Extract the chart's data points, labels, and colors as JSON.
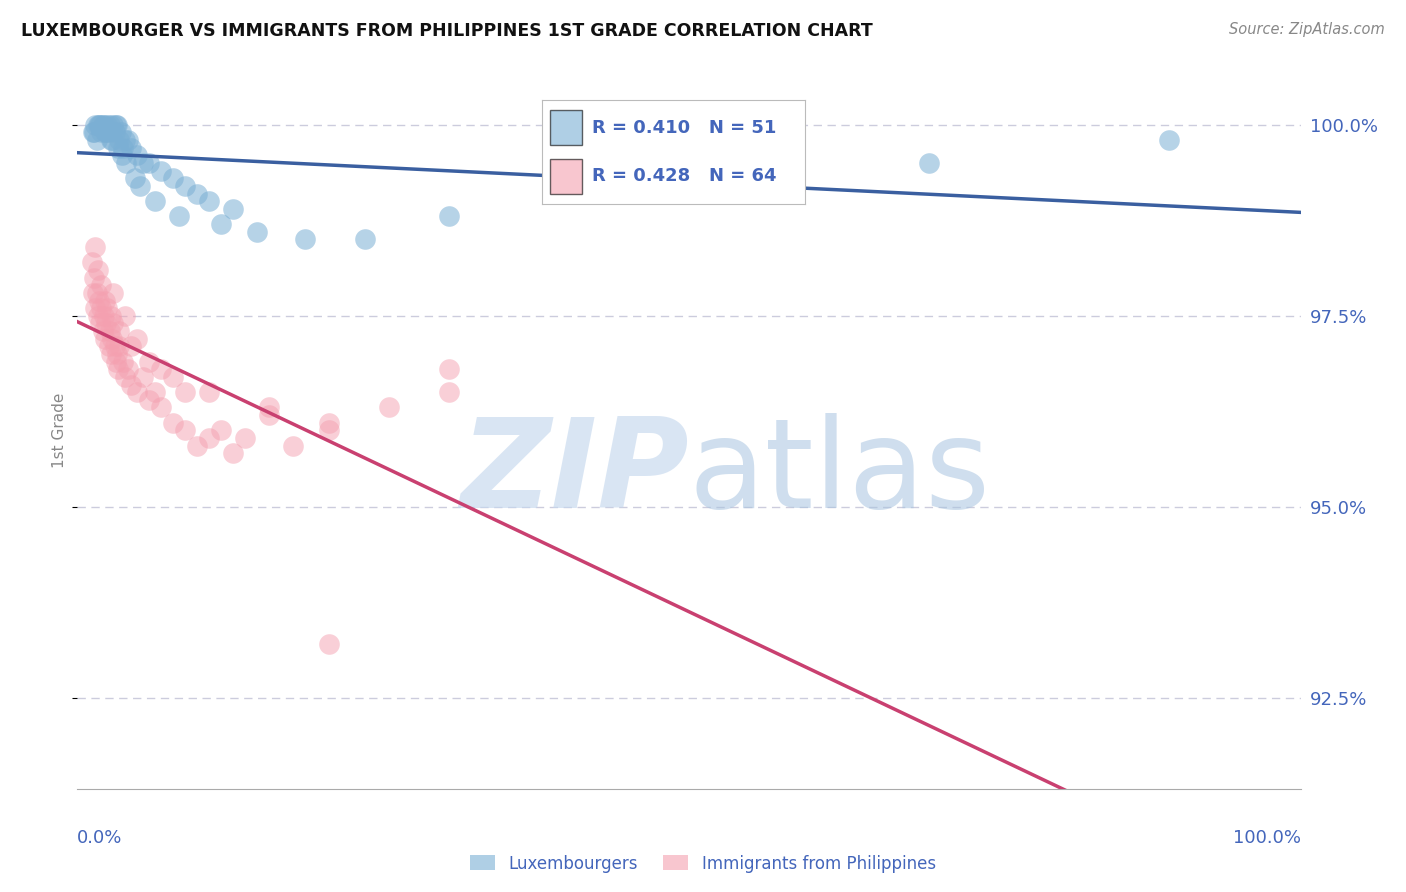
{
  "title": "LUXEMBOURGER VS IMMIGRANTS FROM PHILIPPINES 1ST GRADE CORRELATION CHART",
  "source": "Source: ZipAtlas.com",
  "ylabel": "1st Grade",
  "yticks": [
    92.5,
    95.0,
    97.5,
    100.0
  ],
  "ytick_labels": [
    "92.5%",
    "95.0%",
    "97.5%",
    "100.0%"
  ],
  "ymin": 91.3,
  "ymax": 100.7,
  "xmin": -1,
  "xmax": 101,
  "legend_blue_r": "0.410",
  "legend_blue_n": "51",
  "legend_pink_r": "0.428",
  "legend_pink_n": "64",
  "blue_color": "#7BAFD4",
  "pink_color": "#F4A0B0",
  "blue_line_color": "#3A5FA0",
  "pink_line_color": "#C94070",
  "axis_label_color": "#4466BB",
  "grid_color": "#CCCCDD",
  "title_color": "#111111",
  "source_color": "#888888",
  "ylabel_color": "#888888",
  "blue_scatter_x": [
    0.3,
    0.5,
    0.6,
    0.8,
    1.0,
    1.1,
    1.2,
    1.3,
    1.5,
    1.6,
    1.7,
    1.8,
    2.0,
    2.1,
    2.2,
    2.3,
    2.5,
    2.6,
    2.8,
    3.0,
    3.2,
    3.5,
    4.0,
    4.5,
    5.0,
    6.0,
    7.0,
    8.0,
    9.0,
    10.0,
    12.0,
    0.4,
    0.7,
    0.9,
    1.4,
    1.9,
    2.4,
    2.7,
    3.1,
    3.8,
    4.2,
    5.5,
    7.5,
    11.0,
    14.0,
    18.0,
    23.0,
    30.0,
    50.0,
    70.0,
    90.0
  ],
  "blue_scatter_y": [
    99.9,
    100.0,
    99.8,
    100.0,
    99.9,
    100.0,
    100.0,
    99.9,
    100.0,
    99.9,
    100.0,
    99.8,
    100.0,
    99.9,
    100.0,
    100.0,
    99.8,
    99.9,
    99.7,
    99.8,
    99.8,
    99.7,
    99.6,
    99.5,
    99.5,
    99.4,
    99.3,
    99.2,
    99.1,
    99.0,
    98.9,
    99.9,
    100.0,
    100.0,
    99.9,
    99.8,
    99.7,
    99.6,
    99.5,
    99.3,
    99.2,
    99.0,
    98.8,
    98.7,
    98.6,
    98.5,
    98.5,
    98.8,
    99.2,
    99.5,
    99.8
  ],
  "pink_scatter_x": [
    0.2,
    0.3,
    0.4,
    0.5,
    0.6,
    0.7,
    0.8,
    0.9,
    1.0,
    1.1,
    1.2,
    1.3,
    1.4,
    1.5,
    1.6,
    1.7,
    1.8,
    1.9,
    2.0,
    2.1,
    2.2,
    2.3,
    2.4,
    2.5,
    2.8,
    3.0,
    3.2,
    3.5,
    4.0,
    4.5,
    5.0,
    5.5,
    6.0,
    7.0,
    8.0,
    9.0,
    10.0,
    11.0,
    12.0,
    13.0,
    15.0,
    17.0,
    20.0,
    25.0,
    30.0,
    0.5,
    0.7,
    1.0,
    1.3,
    1.8,
    2.5,
    3.5,
    5.0,
    7.0,
    10.0,
    15.0,
    20.0,
    30.0,
    2.0,
    3.0,
    4.0,
    6.0,
    8.0,
    20.0
  ],
  "pink_scatter_y": [
    98.2,
    97.8,
    98.0,
    97.6,
    97.8,
    97.5,
    97.7,
    97.4,
    97.6,
    97.3,
    97.5,
    97.2,
    97.4,
    97.6,
    97.1,
    97.3,
    97.0,
    97.2,
    97.4,
    97.1,
    96.9,
    97.0,
    96.8,
    97.1,
    96.9,
    96.7,
    96.8,
    96.6,
    96.5,
    96.7,
    96.4,
    96.5,
    96.3,
    96.1,
    96.0,
    95.8,
    95.9,
    96.0,
    95.7,
    95.9,
    96.2,
    95.8,
    96.0,
    96.3,
    96.8,
    98.4,
    98.1,
    97.9,
    97.7,
    97.5,
    97.3,
    97.1,
    96.9,
    96.7,
    96.5,
    96.3,
    96.1,
    96.5,
    97.8,
    97.5,
    97.2,
    96.8,
    96.5,
    93.2
  ]
}
